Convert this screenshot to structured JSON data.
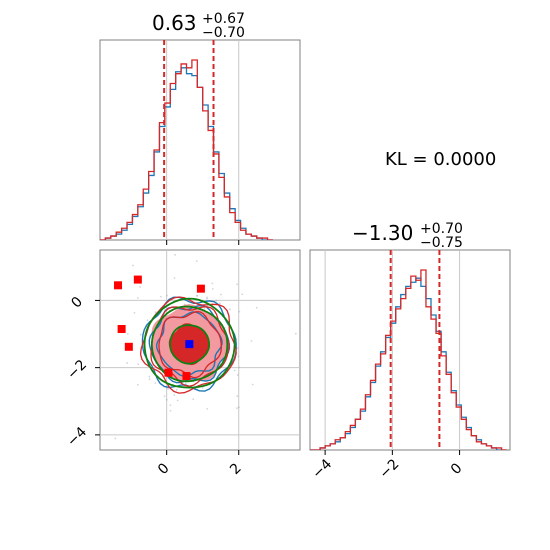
{
  "chart_data": {
    "type": "corner",
    "kl_label": "KL = 0.0000",
    "colors": {
      "blue_series": "#1f77b4",
      "red_series": "#d62728",
      "green_contour": "#108010",
      "fill_light": "#f29aa0",
      "fill_dark": "#d62728",
      "grid": "#c8c8c8",
      "true_marker": "#0000ff",
      "sample_marker": "#ff0000"
    },
    "params": [
      {
        "median_label": "0.63",
        "plus_label": "+0.67",
        "minus_label": "−0.70",
        "median": 0.63,
        "lower": -0.07,
        "upper": 1.3,
        "range": [
          -1.85,
          3.7
        ],
        "ticks": [
          0,
          2
        ],
        "tick_labels": [
          "0",
          "2"
        ],
        "hist_x": [
          -1.85,
          -1.7,
          -1.55,
          -1.4,
          -1.25,
          -1.1,
          -0.95,
          -0.8,
          -0.65,
          -0.5,
          -0.35,
          -0.2,
          -0.05,
          0.1,
          0.25,
          0.4,
          0.55,
          0.7,
          0.85,
          1.0,
          1.15,
          1.3,
          1.45,
          1.6,
          1.75,
          1.9,
          2.05,
          2.2,
          2.35,
          2.5,
          2.65,
          2.8
        ],
        "hist_blue": [
          0,
          1,
          2,
          3,
          5,
          8,
          12,
          17,
          24,
          33,
          45,
          58,
          68,
          77,
          86,
          88,
          85,
          84,
          78,
          69,
          58,
          45,
          34,
          24,
          16,
          10,
          6,
          3,
          2,
          1,
          0,
          0
        ],
        "hist_red": [
          0,
          1,
          2,
          4,
          6,
          9,
          13,
          18,
          26,
          35,
          46,
          60,
          70,
          80,
          85,
          90,
          88,
          92,
          78,
          66,
          56,
          44,
          32,
          22,
          14,
          9,
          5,
          3,
          2,
          1,
          1,
          0
        ]
      },
      {
        "median_label": "−1.30",
        "plus_label": "+0.70",
        "minus_label": "−0.75",
        "median": -1.3,
        "lower": -2.05,
        "upper": -0.6,
        "range": [
          -4.45,
          1.5
        ],
        "ticks": [
          -4,
          -2,
          0
        ],
        "tick_labels": [
          "−4",
          "−2",
          "0"
        ],
        "hist_x": [
          -4.45,
          -4.3,
          -4.15,
          -4.0,
          -3.85,
          -3.7,
          -3.55,
          -3.4,
          -3.25,
          -3.1,
          -2.95,
          -2.8,
          -2.65,
          -2.5,
          -2.35,
          -2.2,
          -2.05,
          -1.9,
          -1.75,
          -1.6,
          -1.45,
          -1.3,
          -1.15,
          -1.0,
          -0.85,
          -0.7,
          -0.55,
          -0.4,
          -0.25,
          -0.1,
          0.05,
          0.2,
          0.35,
          0.5,
          0.65,
          0.8,
          0.95,
          1.1,
          1.25
        ],
        "hist_blue": [
          0,
          0,
          1,
          2,
          3,
          4,
          6,
          8,
          11,
          15,
          19,
          26,
          33,
          41,
          48,
          55,
          62,
          70,
          76,
          80,
          82,
          84,
          80,
          74,
          66,
          58,
          48,
          38,
          29,
          22,
          16,
          11,
          7,
          5,
          3,
          2,
          1,
          0,
          0
        ],
        "hist_red": [
          0,
          0,
          1,
          2,
          3,
          5,
          6,
          9,
          12,
          15,
          20,
          27,
          34,
          42,
          47,
          56,
          63,
          69,
          74,
          79,
          85,
          83,
          88,
          70,
          64,
          57,
          46,
          37,
          28,
          21,
          15,
          10,
          7,
          4,
          3,
          2,
          1,
          1,
          0
        ]
      }
    ],
    "scatter_2d": {
      "true_point": {
        "x": 0.63,
        "y": -1.3
      },
      "red_points": [
        {
          "x": -1.35,
          "y": 0.45
        },
        {
          "x": -0.8,
          "y": 0.62
        },
        {
          "x": -1.25,
          "y": -0.85
        },
        {
          "x": -1.05,
          "y": -1.38
        },
        {
          "x": 0.95,
          "y": 0.35
        },
        {
          "x": 0.05,
          "y": -2.15
        },
        {
          "x": 0.55,
          "y": -2.25
        }
      ],
      "sigma_x": 0.69,
      "sigma_y": 0.73,
      "contour_levels": [
        0.8,
        1.25,
        1.55,
        1.85
      ]
    }
  }
}
